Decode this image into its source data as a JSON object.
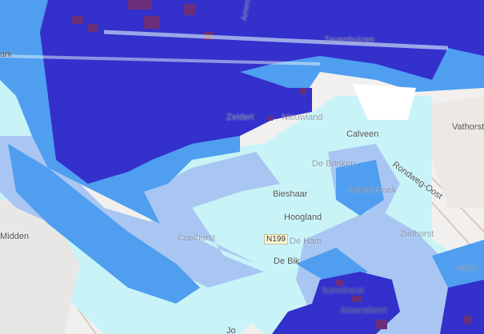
{
  "map": {
    "labels": {
      "park": "ark",
      "amersfoortseweg": "Amersfoortseweg",
      "zevenhuizen": "Zevenhuizen",
      "zeldert": "Zeldert",
      "nieuwland": "Nieuwland",
      "calveen": "Calveen",
      "vathorst": "Vathorst",
      "de_brinken": "De Brinken",
      "rondweg_oost": "Rondweg-Oost",
      "bieshaar": "Bieshaar",
      "kattenbroek": "Kattenbroek",
      "hoogland": "Hoogland",
      "coelhorst": "Coelhorst",
      "de_ham": "De Ham",
      "de_bik": "De Bik",
      "zielhorst": "Zielhorst",
      "vallei": "Vallei",
      "schothorst": "Schothorst",
      "amersfoort": "Amersfoort",
      "midden": "Midden",
      "jo": "Jo"
    },
    "road_shield": "N199",
    "legend_colors": {
      "very_deep": "#6b2f7a",
      "deep": "#3330cc",
      "medium": "#4f9ef0",
      "shallow": "#a9c6f2",
      "very_shallow": "#c8f4f8",
      "base": "#f2f0ee"
    }
  }
}
